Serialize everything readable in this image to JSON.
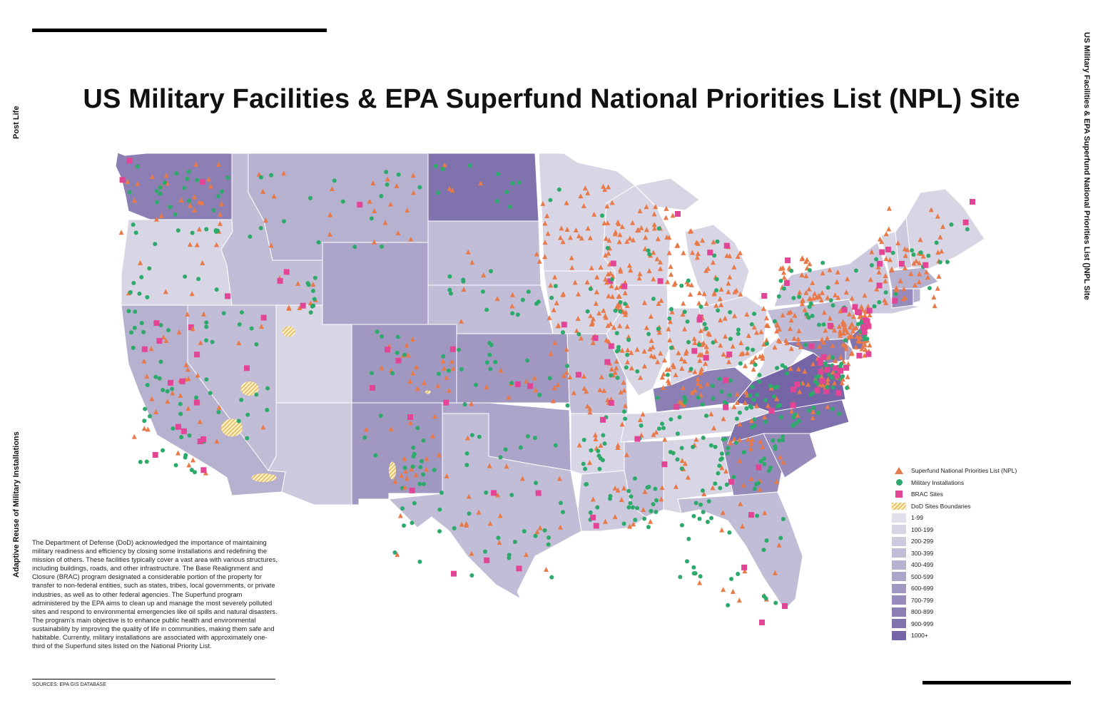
{
  "title": "US Military Facilities & EPA Superfund National Priorities List (NPL) Site",
  "side_labels": {
    "left_top": "Post Life",
    "left_bottom": "Adaptive Reuse of Military Installations",
    "right": "US Military Facilities & EPA Superfund National Priorities List ()NPL Site"
  },
  "description": "The Department of Defense (DoD) acknowledged the importance of maintaining military readiness and efficiency by closing some installations and redefining the mission of others. These facilities typically cover a vast area with various structures, including buildings, roads, and other infrastructure. The Base Realignment and Closure (BRAC) program designated a considerable portion of the property for transfer to non-federal entities, such as states, tribes, local governments, or private industries, as well as to other federal agencies. The Superfund program administered by the EPA aims to clean up and manage the most severely polluted sites and respond to environmental emergencies like oil spills and natural disasters. The program's main objective is to enhance public health and environmental sustainability by improving the quality of life in communities, making them safe and habitable. Currently, military installations are associated with approximately one-third of the Superfund sites listed on the National Priority List.",
  "sources": "SOURCES:  EPA GIS DATABASE",
  "legend": {
    "symbols": [
      {
        "label": "Superfund National Priorities List (NPL)",
        "icon": "triangle",
        "color": "#e87a4a"
      },
      {
        "label": "Military Installations",
        "icon": "circle",
        "color": "#2daa6b"
      },
      {
        "label": "BRAC Sites",
        "icon": "square",
        "color": "#e24496"
      },
      {
        "label": "DoD Sites Boundaries",
        "icon": "hatch",
        "color": "#e6c36b"
      }
    ],
    "classes": [
      {
        "label": "1-99",
        "color": "#e2e0ea"
      },
      {
        "label": "100-199",
        "color": "#d8d5e4"
      },
      {
        "label": "200-299",
        "color": "#cdc9de"
      },
      {
        "label": "300-399",
        "color": "#c2bdd7"
      },
      {
        "label": "400-499",
        "color": "#b7b1d0"
      },
      {
        "label": "500-599",
        "color": "#aca5c9"
      },
      {
        "label": "600-699",
        "color": "#a198c2"
      },
      {
        "label": "700-799",
        "color": "#968bbb"
      },
      {
        "label": "800-899",
        "color": "#8b7fb4"
      },
      {
        "label": "900-999",
        "color": "#8073ad"
      },
      {
        "label": "1000+",
        "color": "#7565a6"
      }
    ]
  },
  "colors": {
    "npl": "#e87a4a",
    "military": "#2daa6b",
    "brac": "#e24496",
    "dod_hatch": "#e6c36b",
    "state_border": "#ffffff"
  }
}
